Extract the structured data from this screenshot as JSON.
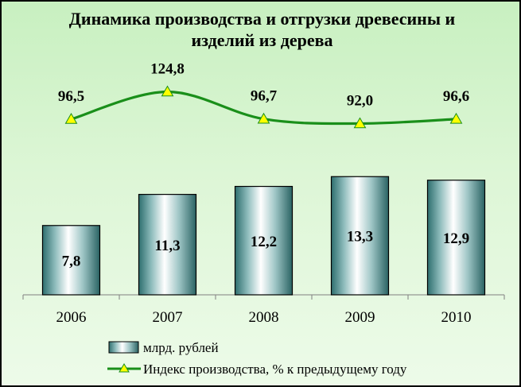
{
  "chart_data": {
    "type": "bar",
    "title_line1": "Динамика производства и отгрузки древесины и",
    "title_line2": "изделий из дерева",
    "categories": [
      "2006",
      "2007",
      "2008",
      "2009",
      "2010"
    ],
    "series": [
      {
        "name": "млрд. рублей",
        "type": "bar",
        "values": [
          7.8,
          11.3,
          12.2,
          13.3,
          12.9
        ],
        "labels": [
          "7,8",
          "11,3",
          "12,2",
          "13,3",
          "12,9"
        ]
      },
      {
        "name": "Индекс производства, % к предыдущему году",
        "type": "line",
        "values": [
          96.5,
          124.8,
          96.7,
          92.0,
          96.6
        ],
        "labels": [
          "96,5",
          "124,8",
          "96,7",
          "92,0",
          "96,6"
        ]
      }
    ],
    "bar_ylim": [
      0,
      24.5
    ],
    "line_ylim": [
      -85,
      140
    ],
    "grid": false,
    "legend_position": "bottom",
    "colors": {
      "bar": "#5f9ea0",
      "line": "#1a8f1a",
      "marker": "#ffff00",
      "background": "#d8f4d0"
    }
  }
}
